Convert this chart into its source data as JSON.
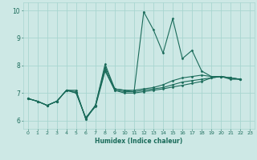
{
  "title": "",
  "xlabel": "Humidex (Indice chaleur)",
  "xlim": [
    -0.5,
    23.5
  ],
  "ylim": [
    5.7,
    10.3
  ],
  "yticks": [
    6,
    7,
    8,
    9,
    10
  ],
  "xticks": [
    0,
    1,
    2,
    3,
    4,
    5,
    6,
    7,
    8,
    9,
    10,
    11,
    12,
    13,
    14,
    15,
    16,
    17,
    18,
    19,
    20,
    21,
    22,
    23
  ],
  "background_color": "#cde8e5",
  "grid_color": "#a8d5d0",
  "line_color": "#1a6b5a",
  "series_x": [
    0,
    1,
    2,
    3,
    4,
    5,
    6,
    7,
    8,
    9,
    10,
    11,
    12,
    13,
    14,
    15,
    16,
    17,
    18,
    19,
    20,
    21,
    22
  ],
  "series": [
    [
      6.8,
      6.7,
      6.55,
      6.7,
      7.1,
      7.1,
      6.05,
      6.55,
      7.95,
      7.15,
      7.1,
      7.05,
      9.95,
      9.3,
      8.45,
      9.7,
      8.25,
      8.55,
      7.8,
      7.6,
      7.6,
      7.5,
      7.5
    ],
    [
      6.8,
      6.7,
      6.55,
      6.7,
      7.1,
      7.05,
      6.05,
      6.55,
      8.05,
      7.15,
      7.1,
      7.1,
      7.15,
      7.2,
      7.3,
      7.45,
      7.55,
      7.6,
      7.65,
      7.6,
      7.6,
      7.55,
      7.5
    ],
    [
      6.8,
      6.7,
      6.55,
      6.7,
      7.1,
      7.0,
      6.1,
      6.55,
      7.85,
      7.1,
      7.05,
      7.05,
      7.1,
      7.15,
      7.2,
      7.3,
      7.4,
      7.45,
      7.5,
      7.55,
      7.6,
      7.55,
      7.5
    ],
    [
      6.8,
      6.7,
      6.55,
      6.7,
      7.1,
      7.0,
      6.1,
      6.5,
      7.8,
      7.1,
      7.0,
      7.0,
      7.05,
      7.1,
      7.15,
      7.22,
      7.28,
      7.35,
      7.42,
      7.55,
      7.6,
      7.55,
      7.5
    ]
  ]
}
